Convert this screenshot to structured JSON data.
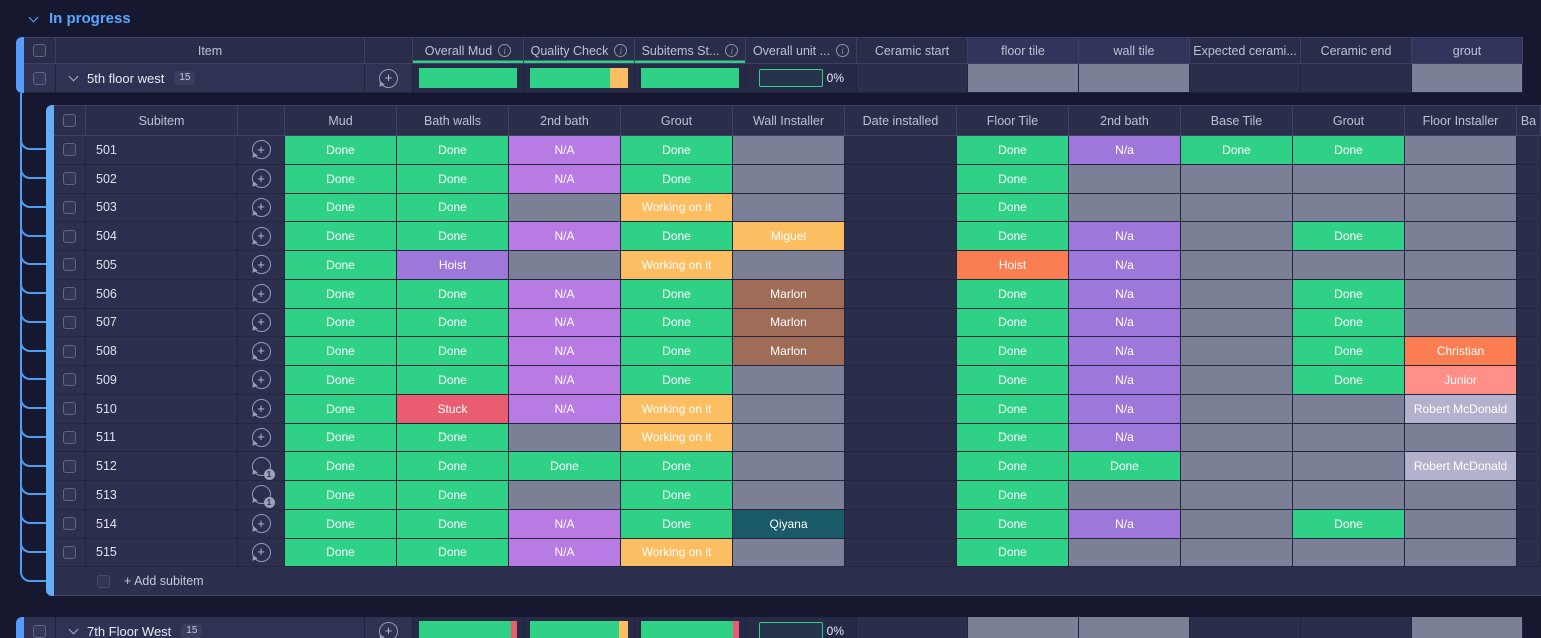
{
  "group": {
    "title": "In progress"
  },
  "colors": {
    "done": "#2fd186",
    "working": "#fdbd61",
    "stuck": "#ea5d71",
    "na_light": "#b87ae3",
    "na_dark": "#9d78da",
    "orange": "#fa7e52",
    "salmon": "#ff8f87",
    "brown": "#9f6d57",
    "lavender": "#b3b1cc",
    "teal": "#1a5a68",
    "empty": "#7b8096",
    "blank": "#2b2e4b",
    "accent": "#579bfc",
    "group_title": "#58a6ff"
  },
  "items_table": {
    "columns": [
      {
        "label": "Item",
        "type": "item"
      },
      {
        "label": "Overall Mud",
        "info": true,
        "underline": true
      },
      {
        "label": "Quality Check",
        "info": true,
        "underline": true
      },
      {
        "label": "Subitems St...",
        "info": true,
        "underline": true
      },
      {
        "label": "Overall unit ...",
        "info": true
      },
      {
        "label": "Ceramic start"
      },
      {
        "label": "floor tile",
        "shade": "light"
      },
      {
        "label": "wall tile",
        "shade": "light"
      },
      {
        "label": "Expected cerami..."
      },
      {
        "label": "Ceramic end"
      },
      {
        "label": "grout",
        "shade": "light"
      }
    ],
    "row": {
      "name": "5th floor west",
      "count": "15",
      "icon": "add",
      "bars": [
        {
          "column": "Overall Mud",
          "segments": [
            [
              "done",
              100
            ]
          ]
        },
        {
          "column": "Quality Check",
          "segments": [
            [
              "done",
              82
            ],
            [
              "working",
              18
            ]
          ]
        },
        {
          "column": "Subitems St...",
          "segments": [
            [
              "done",
              100
            ]
          ]
        }
      ],
      "unit_percent": "0%",
      "tail_cells": [
        "blank",
        "empty",
        "empty",
        "blank",
        "blank",
        "empty"
      ]
    }
  },
  "subitems": {
    "columns": [
      "Subitem",
      "Mud",
      "Bath walls",
      "2nd bath",
      "Grout",
      "Wall Installer",
      "Date installed",
      "Floor Tile",
      "2nd bath",
      "Base Tile",
      "Grout",
      "Floor Installer",
      "Ba"
    ],
    "add_label": "+ Add subitem",
    "rows": [
      {
        "id": "501",
        "icon": "add",
        "cells": [
          [
            "Done",
            "done"
          ],
          [
            "Done",
            "done"
          ],
          [
            "N/A",
            "na_light"
          ],
          [
            "Done",
            "done"
          ],
          [
            "",
            "empty"
          ],
          [
            "",
            "blank"
          ],
          [
            "Done",
            "done"
          ],
          [
            "N/a",
            "na_dark"
          ],
          [
            "Done",
            "done"
          ],
          [
            "Done",
            "done"
          ],
          [
            "",
            "empty"
          ],
          [
            "",
            "blank"
          ]
        ]
      },
      {
        "id": "502",
        "icon": "add",
        "cells": [
          [
            "Done",
            "done"
          ],
          [
            "Done",
            "done"
          ],
          [
            "N/A",
            "na_light"
          ],
          [
            "Done",
            "done"
          ],
          [
            "",
            "empty"
          ],
          [
            "",
            "blank"
          ],
          [
            "Done",
            "done"
          ],
          [
            "",
            "empty"
          ],
          [
            "",
            "empty"
          ],
          [
            "",
            "empty"
          ],
          [
            "",
            "empty"
          ],
          [
            "",
            "blank"
          ]
        ]
      },
      {
        "id": "503",
        "icon": "add",
        "cells": [
          [
            "Done",
            "done"
          ],
          [
            "Done",
            "done"
          ],
          [
            "",
            "empty"
          ],
          [
            "Working on it",
            "working"
          ],
          [
            "",
            "empty"
          ],
          [
            "",
            "blank"
          ],
          [
            "Done",
            "done"
          ],
          [
            "",
            "empty"
          ],
          [
            "",
            "empty"
          ],
          [
            "",
            "empty"
          ],
          [
            "",
            "empty"
          ],
          [
            "",
            "blank"
          ]
        ]
      },
      {
        "id": "504",
        "icon": "add",
        "cells": [
          [
            "Done",
            "done"
          ],
          [
            "Done",
            "done"
          ],
          [
            "N/A",
            "na_light"
          ],
          [
            "Done",
            "done"
          ],
          [
            "Miguel",
            "working"
          ],
          [
            "",
            "blank"
          ],
          [
            "Done",
            "done"
          ],
          [
            "N/a",
            "na_dark"
          ],
          [
            "",
            "empty"
          ],
          [
            "Done",
            "done"
          ],
          [
            "",
            "empty"
          ],
          [
            "",
            "blank"
          ]
        ]
      },
      {
        "id": "505",
        "icon": "add",
        "cells": [
          [
            "Done",
            "done"
          ],
          [
            "Hoist",
            "na_dark"
          ],
          [
            "",
            "empty"
          ],
          [
            "Working on it",
            "working"
          ],
          [
            "",
            "empty"
          ],
          [
            "",
            "blank"
          ],
          [
            "Hoist",
            "orange"
          ],
          [
            "N/a",
            "na_dark"
          ],
          [
            "",
            "empty"
          ],
          [
            "",
            "empty"
          ],
          [
            "",
            "empty"
          ],
          [
            "",
            "blank"
          ]
        ]
      },
      {
        "id": "506",
        "icon": "add",
        "cells": [
          [
            "Done",
            "done"
          ],
          [
            "Done",
            "done"
          ],
          [
            "N/A",
            "na_light"
          ],
          [
            "Done",
            "done"
          ],
          [
            "Marlon",
            "brown"
          ],
          [
            "",
            "blank"
          ],
          [
            "Done",
            "done"
          ],
          [
            "N/a",
            "na_dark"
          ],
          [
            "",
            "empty"
          ],
          [
            "Done",
            "done"
          ],
          [
            "",
            "empty"
          ],
          [
            "",
            "blank"
          ]
        ]
      },
      {
        "id": "507",
        "icon": "add",
        "cells": [
          [
            "Done",
            "done"
          ],
          [
            "Done",
            "done"
          ],
          [
            "N/A",
            "na_light"
          ],
          [
            "Done",
            "done"
          ],
          [
            "Marlon",
            "brown"
          ],
          [
            "",
            "blank"
          ],
          [
            "Done",
            "done"
          ],
          [
            "N/a",
            "na_dark"
          ],
          [
            "",
            "empty"
          ],
          [
            "Done",
            "done"
          ],
          [
            "",
            "empty"
          ],
          [
            "",
            "blank"
          ]
        ]
      },
      {
        "id": "508",
        "icon": "add",
        "cells": [
          [
            "Done",
            "done"
          ],
          [
            "Done",
            "done"
          ],
          [
            "N/A",
            "na_light"
          ],
          [
            "Done",
            "done"
          ],
          [
            "Marlon",
            "brown"
          ],
          [
            "",
            "blank"
          ],
          [
            "Done",
            "done"
          ],
          [
            "N/a",
            "na_dark"
          ],
          [
            "",
            "empty"
          ],
          [
            "Done",
            "done"
          ],
          [
            "Christian",
            "orange"
          ],
          [
            "",
            "blank"
          ]
        ]
      },
      {
        "id": "509",
        "icon": "add",
        "cells": [
          [
            "Done",
            "done"
          ],
          [
            "Done",
            "done"
          ],
          [
            "N/A",
            "na_light"
          ],
          [
            "Done",
            "done"
          ],
          [
            "",
            "empty"
          ],
          [
            "",
            "blank"
          ],
          [
            "Done",
            "done"
          ],
          [
            "N/a",
            "na_dark"
          ],
          [
            "",
            "empty"
          ],
          [
            "Done",
            "done"
          ],
          [
            "Junior",
            "salmon"
          ],
          [
            "",
            "blank"
          ]
        ]
      },
      {
        "id": "510",
        "icon": "add",
        "cells": [
          [
            "Done",
            "done"
          ],
          [
            "Stuck",
            "stuck"
          ],
          [
            "N/A",
            "na_light"
          ],
          [
            "Working on it",
            "working"
          ],
          [
            "",
            "empty"
          ],
          [
            "",
            "blank"
          ],
          [
            "Done",
            "done"
          ],
          [
            "N/a",
            "na_dark"
          ],
          [
            "",
            "empty"
          ],
          [
            "",
            "empty"
          ],
          [
            "Robert McDonald",
            "lavender"
          ],
          [
            "",
            "blank"
          ]
        ]
      },
      {
        "id": "511",
        "icon": "add",
        "cells": [
          [
            "Done",
            "done"
          ],
          [
            "Done",
            "done"
          ],
          [
            "",
            "empty"
          ],
          [
            "Working on it",
            "working"
          ],
          [
            "",
            "empty"
          ],
          [
            "",
            "blank"
          ],
          [
            "Done",
            "done"
          ],
          [
            "N/a",
            "na_dark"
          ],
          [
            "",
            "empty"
          ],
          [
            "",
            "empty"
          ],
          [
            "",
            "empty"
          ],
          [
            "",
            "blank"
          ]
        ]
      },
      {
        "id": "512",
        "icon": "updates",
        "update_count": "1",
        "cells": [
          [
            "Done",
            "done"
          ],
          [
            "Done",
            "done"
          ],
          [
            "Done",
            "done"
          ],
          [
            "Done",
            "done"
          ],
          [
            "",
            "empty"
          ],
          [
            "",
            "blank"
          ],
          [
            "Done",
            "done"
          ],
          [
            "Done",
            "done"
          ],
          [
            "",
            "empty"
          ],
          [
            "",
            "empty"
          ],
          [
            "Robert McDonald",
            "lavender"
          ],
          [
            "",
            "blank"
          ]
        ]
      },
      {
        "id": "513",
        "icon": "updates",
        "update_count": "1",
        "cells": [
          [
            "Done",
            "done"
          ],
          [
            "Done",
            "done"
          ],
          [
            "",
            "empty"
          ],
          [
            "Done",
            "done"
          ],
          [
            "",
            "empty"
          ],
          [
            "",
            "blank"
          ],
          [
            "Done",
            "done"
          ],
          [
            "",
            "empty"
          ],
          [
            "",
            "empty"
          ],
          [
            "",
            "empty"
          ],
          [
            "",
            "empty"
          ],
          [
            "",
            "blank"
          ]
        ]
      },
      {
        "id": "514",
        "icon": "add",
        "cells": [
          [
            "Done",
            "done"
          ],
          [
            "Done",
            "done"
          ],
          [
            "N/A",
            "na_light"
          ],
          [
            "Done",
            "done"
          ],
          [
            "Qiyana",
            "teal"
          ],
          [
            "",
            "blank"
          ],
          [
            "Done",
            "done"
          ],
          [
            "N/a",
            "na_dark"
          ],
          [
            "",
            "empty"
          ],
          [
            "Done",
            "done"
          ],
          [
            "",
            "empty"
          ],
          [
            "",
            "blank"
          ]
        ]
      },
      {
        "id": "515",
        "icon": "add",
        "cells": [
          [
            "Done",
            "done"
          ],
          [
            "Done",
            "done"
          ],
          [
            "N/A",
            "na_light"
          ],
          [
            "Working on it",
            "working"
          ],
          [
            "",
            "empty"
          ],
          [
            "",
            "blank"
          ],
          [
            "Done",
            "done"
          ],
          [
            "",
            "empty"
          ],
          [
            "",
            "empty"
          ],
          [
            "",
            "empty"
          ],
          [
            "",
            "empty"
          ],
          [
            "",
            "blank"
          ]
        ]
      }
    ]
  },
  "next_item": {
    "name": "7th Floor West",
    "count": "15",
    "icon": "add",
    "bars": [
      {
        "column": "Overall Mud",
        "segments": [
          [
            "done",
            94
          ],
          [
            "stuck",
            6
          ]
        ]
      },
      {
        "column": "Quality Check",
        "segments": [
          [
            "done",
            91
          ],
          [
            "working",
            9
          ]
        ]
      },
      {
        "column": "Subitems St...",
        "segments": [
          [
            "done",
            94
          ],
          [
            "stuck",
            6
          ]
        ]
      }
    ],
    "unit_percent": "0%",
    "tail_cells": [
      "blank",
      "empty",
      "empty",
      "blank",
      "blank",
      "empty"
    ]
  }
}
